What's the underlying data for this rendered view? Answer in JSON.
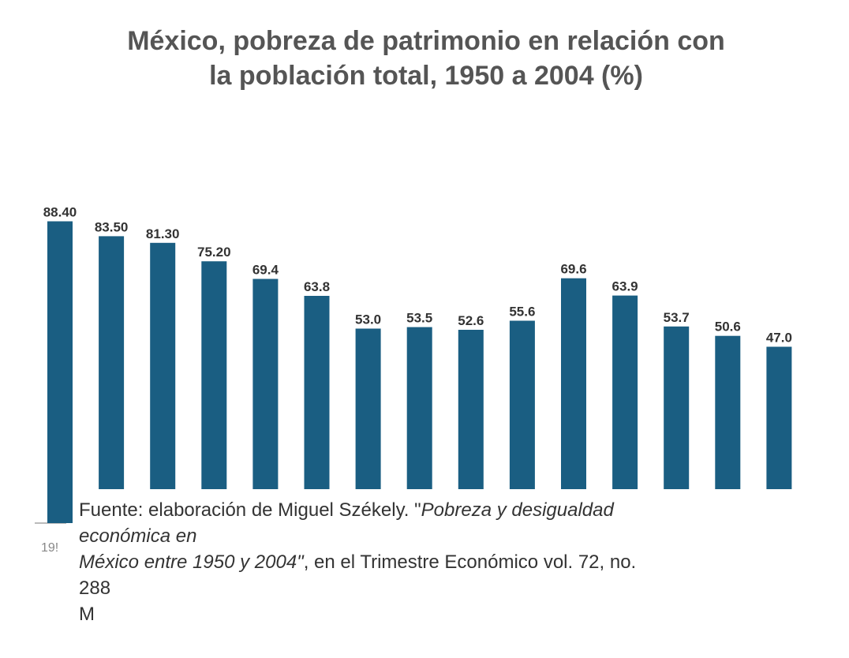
{
  "chart_data": {
    "type": "bar",
    "title_lines": [
      "México, pobreza de patrimonio en relación con",
      "la población total, 1950 a 2004 (%)"
    ],
    "value_labels": [
      "88.40",
      "83.50",
      "81.30",
      "75.20",
      "69.4",
      "63.8",
      "53.0",
      "53.5",
      "52.6",
      "55.6",
      "69.6",
      "63.9",
      "53.7",
      "50.6",
      "47.0"
    ],
    "values": [
      88.4,
      83.5,
      81.3,
      75.2,
      69.4,
      63.8,
      53.0,
      53.5,
      52.6,
      55.6,
      69.6,
      63.9,
      53.7,
      50.6,
      47.0
    ],
    "visible_tick_label": "19!",
    "series_color": "#1a5e82",
    "ylim": [
      0,
      100
    ],
    "grid": false
  },
  "source": {
    "line1_prefix": "Fuente:  elaboración de Miguel Székely. \"",
    "line1_italic": "Pobreza y desigualdad",
    "line2_italic": "económica en",
    "line3_italic": "México entre 1950 y 2004\"",
    "line3_rest": ", en el Trimestre Económico vol. 72, no.",
    "line4": "288",
    "line5": "M"
  }
}
